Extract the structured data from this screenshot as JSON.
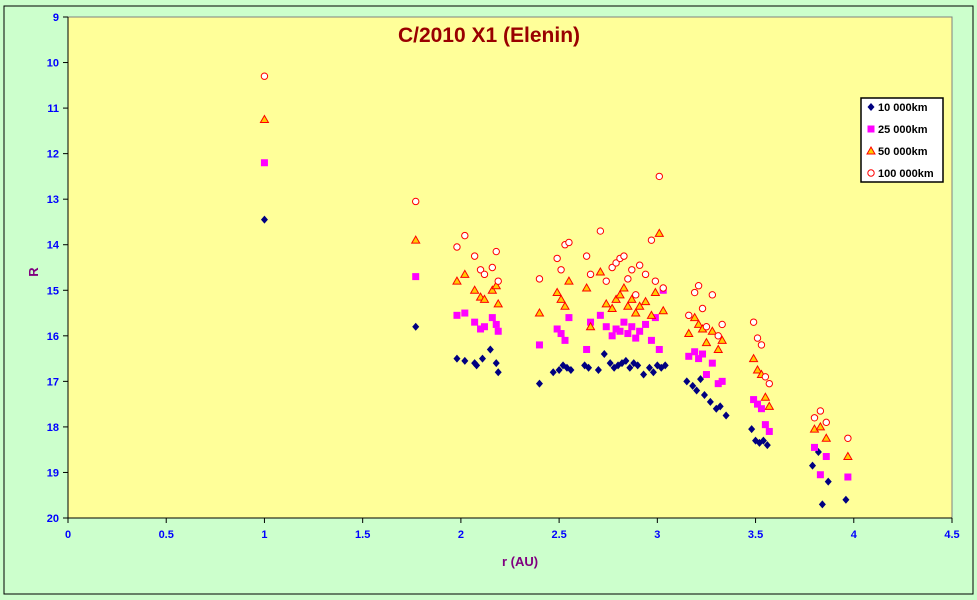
{
  "chart_data": {
    "type": "scatter",
    "title": "C/2010 X1 (Elenin)",
    "xlabel": "r (AU)",
    "ylabel": "R",
    "xlim": [
      0,
      4.5
    ],
    "ylim": [
      9,
      20
    ],
    "y_inverted": true,
    "x_ticks": [
      "0",
      "0.5",
      "1",
      "1.5",
      "2",
      "2.5",
      "3",
      "3.5",
      "4",
      "4.5"
    ],
    "y_ticks": [
      "9",
      "10",
      "11",
      "12",
      "13",
      "14",
      "15",
      "16",
      "17",
      "18",
      "19",
      "20"
    ],
    "grid": false,
    "legend_position": "right",
    "colors": {
      "plot_background": "#ffff99",
      "page_background": "#ccffcc",
      "tick_label": "#0000ff",
      "axis_title": "#800080",
      "title": "#990000"
    },
    "series": [
      {
        "name": "10 000km",
        "marker": "diamond",
        "color": "#000080",
        "x": [
          1.0,
          1.77,
          1.98,
          2.02,
          2.07,
          2.08,
          2.11,
          2.15,
          2.18,
          2.19,
          2.4,
          2.47,
          2.5,
          2.52,
          2.54,
          2.56,
          2.63,
          2.65,
          2.7,
          2.73,
          2.76,
          2.78,
          2.8,
          2.82,
          2.84,
          2.86,
          2.88,
          2.9,
          2.93,
          2.96,
          2.98,
          3.0,
          3.02,
          3.04,
          3.15,
          3.18,
          3.2,
          3.22,
          3.24,
          3.27,
          3.3,
          3.32,
          3.35,
          3.48,
          3.5,
          3.52,
          3.54,
          3.56,
          3.79,
          3.82,
          3.84,
          3.87,
          3.96
        ],
        "y": [
          13.45,
          15.8,
          16.5,
          16.55,
          16.6,
          16.65,
          16.5,
          16.3,
          16.6,
          16.8,
          17.05,
          16.8,
          16.75,
          16.65,
          16.7,
          16.75,
          16.65,
          16.7,
          16.75,
          16.4,
          16.6,
          16.7,
          16.65,
          16.6,
          16.55,
          16.7,
          16.6,
          16.65,
          16.85,
          16.7,
          16.8,
          16.65,
          16.7,
          16.65,
          17.0,
          17.1,
          17.2,
          16.95,
          17.3,
          17.45,
          17.6,
          17.55,
          17.75,
          18.05,
          18.3,
          18.35,
          18.3,
          18.4,
          18.85,
          18.55,
          19.7,
          19.2,
          19.6
        ]
      },
      {
        "name": "25 000km",
        "marker": "square",
        "color": "#ff00ff",
        "x": [
          1.0,
          1.77,
          1.98,
          2.02,
          2.07,
          2.1,
          2.12,
          2.16,
          2.18,
          2.19,
          2.4,
          2.49,
          2.51,
          2.53,
          2.55,
          2.64,
          2.66,
          2.71,
          2.74,
          2.77,
          2.79,
          2.81,
          2.83,
          2.85,
          2.87,
          2.89,
          2.91,
          2.94,
          2.97,
          2.99,
          3.01,
          3.03,
          3.16,
          3.19,
          3.21,
          3.23,
          3.25,
          3.28,
          3.31,
          3.33,
          3.49,
          3.51,
          3.53,
          3.55,
          3.57,
          3.8,
          3.83,
          3.86,
          3.97
        ],
        "y": [
          12.2,
          14.7,
          15.55,
          15.5,
          15.7,
          15.85,
          15.8,
          15.6,
          15.75,
          15.9,
          16.2,
          15.85,
          15.95,
          16.1,
          15.6,
          16.3,
          15.7,
          15.55,
          15.8,
          16.0,
          15.85,
          15.9,
          15.7,
          15.95,
          15.8,
          16.05,
          15.9,
          15.75,
          16.1,
          15.6,
          16.3,
          15.0,
          16.45,
          16.35,
          16.5,
          16.4,
          16.85,
          16.6,
          17.05,
          17.0,
          17.4,
          17.5,
          17.6,
          17.95,
          18.1,
          18.45,
          19.05,
          18.65,
          19.1
        ]
      },
      {
        "name": "50 000km",
        "marker": "triangle",
        "color": "#ff0000",
        "fill": "#ffcc00",
        "x": [
          1.0,
          1.77,
          1.98,
          2.02,
          2.07,
          2.1,
          2.12,
          2.16,
          2.18,
          2.19,
          2.4,
          2.49,
          2.51,
          2.53,
          2.55,
          2.64,
          2.66,
          2.71,
          2.74,
          2.77,
          2.79,
          2.81,
          2.83,
          2.85,
          2.87,
          2.89,
          2.91,
          2.94,
          2.97,
          2.99,
          3.01,
          3.03,
          3.16,
          3.19,
          3.21,
          3.23,
          3.25,
          3.28,
          3.31,
          3.33,
          3.49,
          3.51,
          3.53,
          3.55,
          3.57,
          3.8,
          3.83,
          3.86,
          3.97
        ],
        "y": [
          11.25,
          13.9,
          14.8,
          14.65,
          15.0,
          15.15,
          15.2,
          15.0,
          14.9,
          15.3,
          15.5,
          15.05,
          15.2,
          15.35,
          14.8,
          14.95,
          15.8,
          14.6,
          15.3,
          15.4,
          15.2,
          15.1,
          14.95,
          15.35,
          15.2,
          15.5,
          15.35,
          15.25,
          15.55,
          15.05,
          13.75,
          15.45,
          15.95,
          15.6,
          15.75,
          15.85,
          16.15,
          15.9,
          16.3,
          16.1,
          16.5,
          16.75,
          16.85,
          17.35,
          17.55,
          18.05,
          18.0,
          18.25,
          18.65
        ]
      },
      {
        "name": "100 000km",
        "marker": "circle",
        "color": "#ff0000",
        "fill": "#ffffff",
        "x": [
          1.0,
          1.77,
          1.98,
          2.02,
          2.07,
          2.1,
          2.12,
          2.16,
          2.18,
          2.19,
          2.4,
          2.49,
          2.51,
          2.53,
          2.55,
          2.64,
          2.66,
          2.71,
          2.74,
          2.77,
          2.79,
          2.81,
          2.83,
          2.85,
          2.87,
          2.89,
          2.91,
          2.94,
          2.97,
          2.99,
          3.01,
          3.03,
          3.16,
          3.19,
          3.21,
          3.23,
          3.25,
          3.28,
          3.31,
          3.33,
          3.49,
          3.51,
          3.53,
          3.55,
          3.57,
          3.8,
          3.83,
          3.86,
          3.97
        ],
        "y": [
          10.3,
          13.05,
          14.05,
          13.8,
          14.25,
          14.55,
          14.65,
          14.5,
          14.15,
          14.8,
          14.75,
          14.3,
          14.55,
          14.0,
          13.95,
          14.25,
          14.65,
          13.7,
          14.8,
          14.5,
          14.4,
          14.3,
          14.25,
          14.75,
          14.55,
          15.1,
          14.45,
          14.65,
          13.9,
          14.8,
          12.5,
          14.95,
          15.55,
          15.05,
          14.9,
          15.4,
          15.8,
          15.1,
          16.0,
          15.75,
          15.7,
          16.05,
          16.2,
          16.9,
          17.05,
          17.8,
          17.65,
          17.9,
          18.25
        ]
      }
    ]
  }
}
